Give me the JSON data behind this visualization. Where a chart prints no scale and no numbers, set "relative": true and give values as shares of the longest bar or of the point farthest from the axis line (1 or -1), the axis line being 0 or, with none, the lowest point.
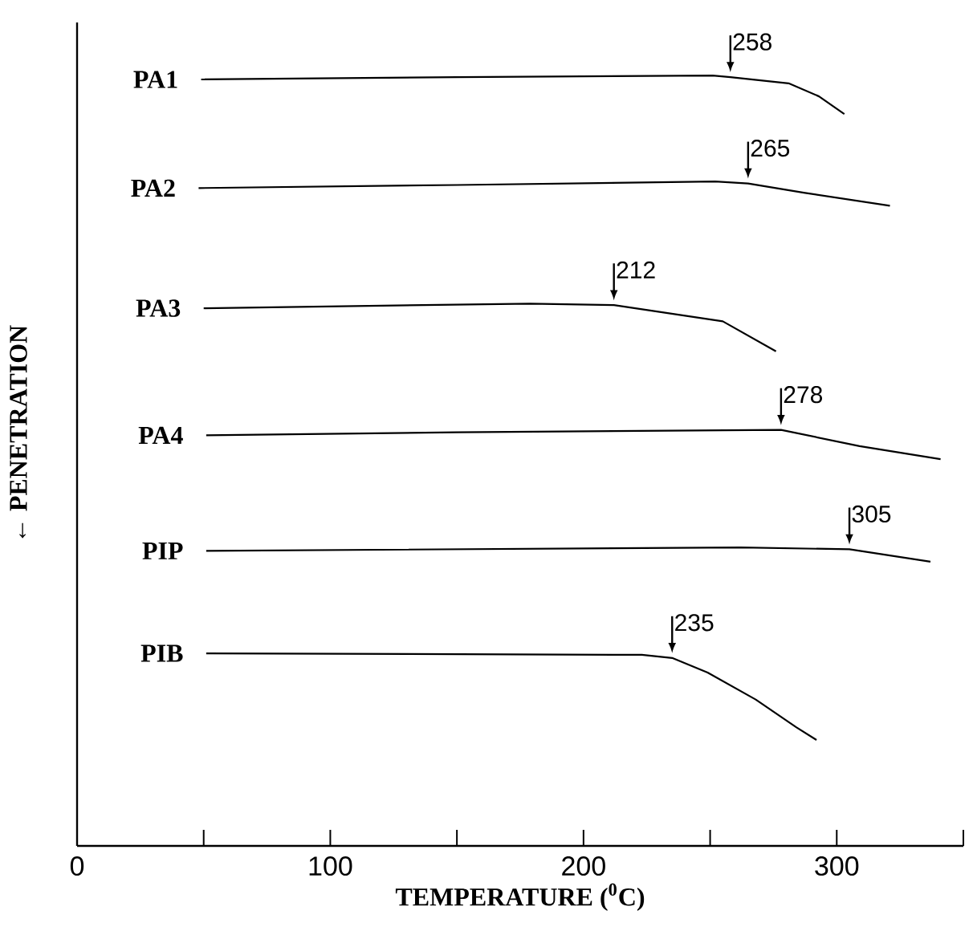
{
  "chart_data": {
    "type": "line",
    "relative": true,
    "xlabel": "TEMPERATURE ($^{0}$C)",
    "ylabel": "← PENETRATION",
    "xlim": [
      0,
      350
    ],
    "xticks": [
      0,
      {
        "value": 50,
        "label": null
      },
      100,
      {
        "value": 150,
        "label": null
      },
      200,
      {
        "value": 250,
        "label": null
      },
      300,
      {
        "value": 350,
        "label": null
      }
    ],
    "series": [
      {
        "name": "PA1",
        "color": "#000000",
        "x": [
          49,
          150,
          251,
          258,
          281,
          293,
          303
        ],
        "values": [
          0.995,
          0.998,
          1.0,
          0.998,
          0.99,
          0.973,
          0.95
        ]
      },
      {
        "name": "PA2",
        "color": "#000000",
        "x": [
          48,
          150,
          252,
          265,
          287,
          321
        ],
        "values": [
          0.854,
          0.858,
          0.8625,
          0.86,
          0.848,
          0.831
        ]
      },
      {
        "name": "PA3",
        "color": "#000000",
        "x": [
          50,
          179,
          212,
          255,
          276
        ],
        "values": [
          0.698,
          0.704,
          0.702,
          0.681,
          0.642
        ]
      },
      {
        "name": "PA4",
        "color": "#000000",
        "x": [
          51,
          150,
          278,
          309,
          341
        ],
        "values": [
          0.533,
          0.537,
          0.54,
          0.519,
          0.502
        ]
      },
      {
        "name": "PIP",
        "color": "#000000",
        "x": [
          51,
          262,
          305,
          337
        ],
        "values": [
          0.383,
          0.3875,
          0.385,
          0.369
        ]
      },
      {
        "name": "PIB",
        "color": "#000000",
        "x": [
          51,
          223,
          235,
          249,
          268,
          284,
          292
        ],
        "values": [
          0.25,
          0.248,
          0.244,
          0.225,
          0.19,
          0.154,
          0.1375
        ]
      }
    ],
    "annotations": [
      {
        "text": "258",
        "x": 258,
        "y": 0.998
      },
      {
        "text": "265",
        "x": 265,
        "y": 0.86
      },
      {
        "text": "212",
        "x": 212,
        "y": 0.702
      },
      {
        "text": "278",
        "x": 278,
        "y": 0.54
      },
      {
        "text": "305",
        "x": 305,
        "y": 0.385
      },
      {
        "text": "235",
        "x": 235,
        "y": 0.244
      }
    ]
  }
}
